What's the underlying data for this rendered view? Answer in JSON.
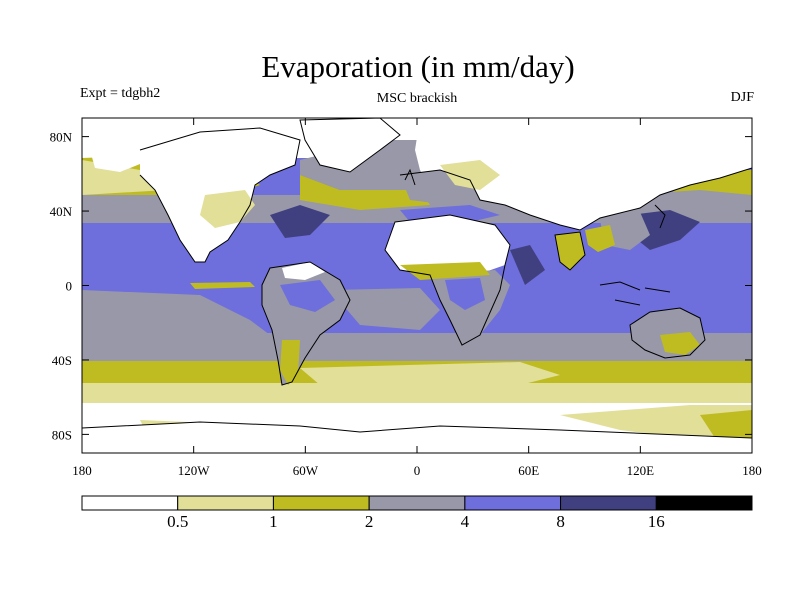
{
  "title": "Evaporation (in mm/day)",
  "experiment": "Expt = tdgbh2",
  "subtitle": "MSC brackish",
  "season": "DJF",
  "colors": {
    "level0": "#ffffff",
    "level1": "#e2df98",
    "level2": "#bfbc22",
    "level3": "#9898a8",
    "level4": "#6e6edc",
    "level5": "#404080",
    "level6": "#000000"
  },
  "legend": {
    "levels": [
      "0.5",
      "1",
      "2",
      "4",
      "8",
      "16"
    ]
  },
  "chart_data": {
    "type": "heatmap",
    "title": "Evaporation (in mm/day)",
    "projection": "equirectangular",
    "xlim": [
      -180,
      180
    ],
    "ylim": [
      -90,
      90
    ],
    "x_ticks": [
      {
        "value": -180,
        "label": "180"
      },
      {
        "value": -120,
        "label": "120W"
      },
      {
        "value": -60,
        "label": "60W"
      },
      {
        "value": 0,
        "label": "0"
      },
      {
        "value": 60,
        "label": "60E"
      },
      {
        "value": 120,
        "label": "120E"
      },
      {
        "value": 180,
        "label": "180"
      }
    ],
    "y_ticks": [
      {
        "value": 80,
        "label": "80N"
      },
      {
        "value": 40,
        "label": "40N"
      },
      {
        "value": 0,
        "label": "0"
      },
      {
        "value": -40,
        "label": "40S"
      },
      {
        "value": -80,
        "label": "80S"
      }
    ],
    "contour_levels": [
      0.5,
      1,
      2,
      4,
      8,
      16
    ]
  }
}
